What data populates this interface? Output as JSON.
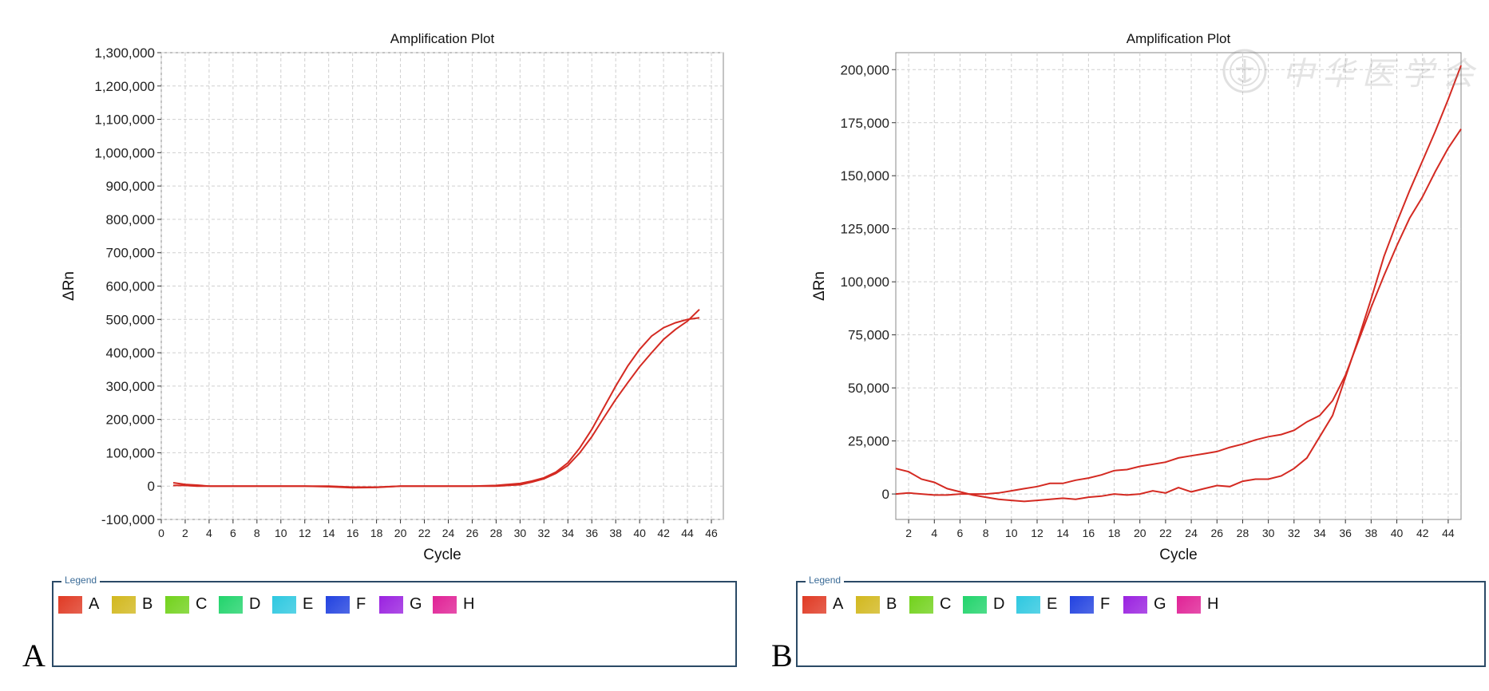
{
  "chart_data": [
    {
      "type": "line",
      "panel_label": "A",
      "title": "Amplification Plot",
      "xlabel": "Cycle",
      "ylabel": "ΔRn",
      "xlim": [
        0,
        47
      ],
      "ylim": [
        -100000,
        1300000
      ],
      "xticks": [
        0,
        2,
        4,
        6,
        8,
        10,
        12,
        14,
        16,
        18,
        20,
        22,
        24,
        26,
        28,
        30,
        32,
        34,
        36,
        38,
        40,
        42,
        44,
        46
      ],
      "yticks": [
        -100000,
        0,
        100000,
        200000,
        300000,
        400000,
        500000,
        600000,
        700000,
        800000,
        900000,
        1000000,
        1100000,
        1200000,
        1300000
      ],
      "ytick_labels": [
        "-100,000",
        "0",
        "100,000",
        "200,000",
        "300,000",
        "400,000",
        "500,000",
        "600,000",
        "700,000",
        "800,000",
        "900,000",
        "1,000,000",
        "1,100,000",
        "1,200,000",
        "1,300,000"
      ],
      "grid": true,
      "series": [
        {
          "name": "A",
          "color": "#d42a22",
          "x": [
            1,
            2,
            3,
            4,
            6,
            8,
            10,
            12,
            14,
            16,
            18,
            20,
            22,
            24,
            26,
            28,
            30,
            31,
            32,
            33,
            34,
            35,
            36,
            37,
            38,
            39,
            40,
            41,
            42,
            43,
            44,
            45
          ],
          "y": [
            10000,
            5000,
            3000,
            0,
            0,
            0,
            0,
            0,
            -2000,
            -5000,
            -4000,
            0,
            0,
            0,
            0,
            2000,
            8000,
            15000,
            25000,
            42000,
            70000,
            115000,
            170000,
            235000,
            300000,
            360000,
            410000,
            450000,
            475000,
            490000,
            500000,
            505000
          ]
        },
        {
          "name": "A",
          "color": "#d42a22",
          "x": [
            1,
            2,
            3,
            4,
            6,
            8,
            10,
            12,
            14,
            16,
            18,
            20,
            22,
            24,
            26,
            28,
            30,
            31,
            32,
            33,
            34,
            35,
            36,
            37,
            38,
            39,
            40,
            41,
            42,
            43,
            44,
            45
          ],
          "y": [
            2000,
            2000,
            0,
            0,
            0,
            0,
            0,
            0,
            0,
            -3000,
            -3000,
            0,
            0,
            0,
            0,
            0,
            4000,
            12000,
            22000,
            38000,
            62000,
            100000,
            148000,
            205000,
            260000,
            310000,
            358000,
            400000,
            440000,
            470000,
            495000,
            530000
          ]
        }
      ],
      "legend": {
        "title": "Legend",
        "items": [
          {
            "label": "A",
            "color": "#e03a24"
          },
          {
            "label": "B",
            "color": "#d2b81e"
          },
          {
            "label": "C",
            "color": "#72d21c"
          },
          {
            "label": "D",
            "color": "#22d46c"
          },
          {
            "label": "E",
            "color": "#2ec8e0"
          },
          {
            "label": "F",
            "color": "#2242e0"
          },
          {
            "label": "G",
            "color": "#9a22e0"
          },
          {
            "label": "H",
            "color": "#e02296"
          }
        ]
      }
    },
    {
      "type": "line",
      "panel_label": "B",
      "title": "Amplification Plot",
      "xlabel": "Cycle",
      "ylabel": "ΔRn",
      "xlim": [
        1,
        45
      ],
      "ylim": [
        -12000,
        208000
      ],
      "xticks": [
        2,
        4,
        6,
        8,
        10,
        12,
        14,
        16,
        18,
        20,
        22,
        24,
        26,
        28,
        30,
        32,
        34,
        36,
        38,
        40,
        42,
        44
      ],
      "yticks": [
        0,
        25000,
        50000,
        75000,
        100000,
        125000,
        150000,
        175000,
        200000
      ],
      "ytick_labels": [
        "0",
        "25,000",
        "50,000",
        "75,000",
        "100,000",
        "125,000",
        "150,000",
        "175,000",
        "200,000"
      ],
      "grid": true,
      "series": [
        {
          "name": "A",
          "color": "#d42a22",
          "x": [
            1,
            2,
            3,
            4,
            5,
            6,
            7,
            8,
            9,
            10,
            11,
            12,
            13,
            14,
            15,
            16,
            17,
            18,
            19,
            20,
            21,
            22,
            23,
            24,
            25,
            26,
            27,
            28,
            29,
            30,
            31,
            32,
            33,
            34,
            35,
            36,
            37,
            38,
            39,
            40,
            41,
            42,
            43,
            44,
            45
          ],
          "y": [
            12000,
            10500,
            7000,
            5500,
            2500,
            1000,
            -500,
            -1500,
            -2500,
            -3000,
            -3500,
            -3000,
            -2500,
            -2000,
            -2500,
            -1500,
            -1000,
            0,
            -500,
            0,
            1500,
            500,
            3000,
            1000,
            2500,
            4000,
            3500,
            6000,
            7000,
            7000,
            8500,
            12000,
            17000,
            27000,
            37000,
            55000,
            73000,
            92000,
            112000,
            128000,
            143000,
            157000,
            171000,
            186000,
            202000
          ]
        },
        {
          "name": "A",
          "color": "#d42a22",
          "x": [
            1,
            2,
            3,
            4,
            5,
            6,
            7,
            8,
            9,
            10,
            11,
            12,
            13,
            14,
            15,
            16,
            17,
            18,
            19,
            20,
            21,
            22,
            23,
            24,
            25,
            26,
            27,
            28,
            29,
            30,
            31,
            32,
            33,
            34,
            35,
            36,
            37,
            38,
            39,
            40,
            41,
            42,
            43,
            44,
            45
          ],
          "y": [
            0,
            500,
            0,
            -500,
            -500,
            0,
            0,
            0,
            500,
            1500,
            2500,
            3500,
            5000,
            5000,
            6500,
            7500,
            9000,
            11000,
            11500,
            13000,
            14000,
            15000,
            17000,
            18000,
            19000,
            20000,
            22000,
            23500,
            25500,
            27000,
            28000,
            30000,
            34000,
            37000,
            44000,
            56000,
            72000,
            88000,
            103000,
            117000,
            130000,
            140000,
            152000,
            163000,
            172000
          ]
        }
      ],
      "legend": {
        "title": "Legend",
        "items": [
          {
            "label": "A",
            "color": "#e03a24"
          },
          {
            "label": "B",
            "color": "#d2b81e"
          },
          {
            "label": "C",
            "color": "#72d21c"
          },
          {
            "label": "D",
            "color": "#22d46c"
          },
          {
            "label": "E",
            "color": "#2ec8e0"
          },
          {
            "label": "F",
            "color": "#2242e0"
          },
          {
            "label": "G",
            "color": "#9a22e0"
          },
          {
            "label": "H",
            "color": "#e02296"
          }
        ]
      }
    }
  ],
  "watermark": {
    "text": "中华医学会"
  }
}
